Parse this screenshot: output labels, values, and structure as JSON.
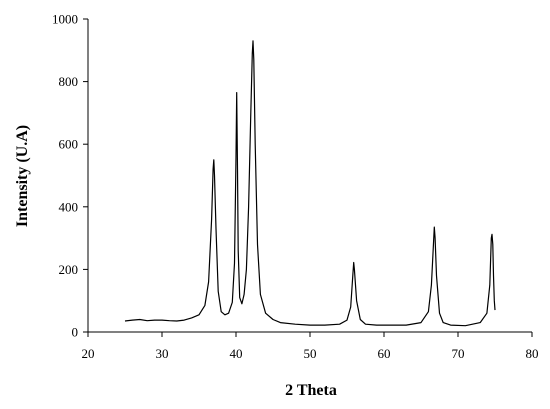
{
  "chart_data": {
    "type": "line",
    "title": "",
    "xlabel": "2 Theta",
    "ylabel": "Intensity (U.A)",
    "xlim": [
      20,
      80
    ],
    "ylim": [
      0,
      1000
    ],
    "x_ticks": [
      20,
      30,
      40,
      50,
      60,
      70,
      80
    ],
    "y_ticks": [
      0,
      200,
      400,
      600,
      800,
      1000
    ],
    "grid": false,
    "legend": "none",
    "line_color": "#000000",
    "series": [
      {
        "x": [
          25.0,
          26.0,
          27.0,
          28.0,
          29.0,
          30.0,
          31.0,
          32.0,
          33.0,
          34.0,
          35.0,
          35.8,
          36.3,
          36.7,
          36.9,
          37.0,
          37.1,
          37.3,
          37.6,
          38.0,
          38.5,
          39.0,
          39.5,
          39.8,
          40.0,
          40.1,
          40.2,
          40.3,
          40.5,
          40.8,
          41.1,
          41.4,
          41.7,
          42.0,
          42.2,
          42.3,
          42.4,
          42.6,
          42.9,
          43.3,
          44.0,
          45.0,
          46.0,
          48.0,
          50.0,
          52.0,
          54.0,
          55.0,
          55.5,
          55.8,
          55.9,
          56.0,
          56.3,
          56.8,
          57.5,
          59.0,
          61.0,
          63.0,
          65.0,
          66.0,
          66.4,
          66.7,
          66.8,
          66.9,
          67.1,
          67.5,
          68.0,
          69.0,
          71.0,
          73.0,
          73.9,
          74.3,
          74.5,
          74.6,
          74.7,
          74.8,
          74.9,
          75.0
        ],
        "y": [
          35,
          38,
          40,
          36,
          38,
          38,
          36,
          35,
          38,
          45,
          55,
          85,
          160,
          360,
          520,
          550,
          500,
          330,
          130,
          65,
          55,
          60,
          95,
          220,
          560,
          765,
          520,
          260,
          110,
          90,
          120,
          200,
          400,
          700,
          890,
          930,
          870,
          600,
          280,
          120,
          60,
          40,
          30,
          25,
          22,
          22,
          25,
          38,
          80,
          185,
          222,
          200,
          100,
          40,
          25,
          22,
          22,
          22,
          30,
          65,
          150,
          290,
          335,
          300,
          180,
          60,
          30,
          22,
          20,
          30,
          60,
          150,
          300,
          312,
          280,
          180,
          100,
          70
        ]
      }
    ]
  }
}
